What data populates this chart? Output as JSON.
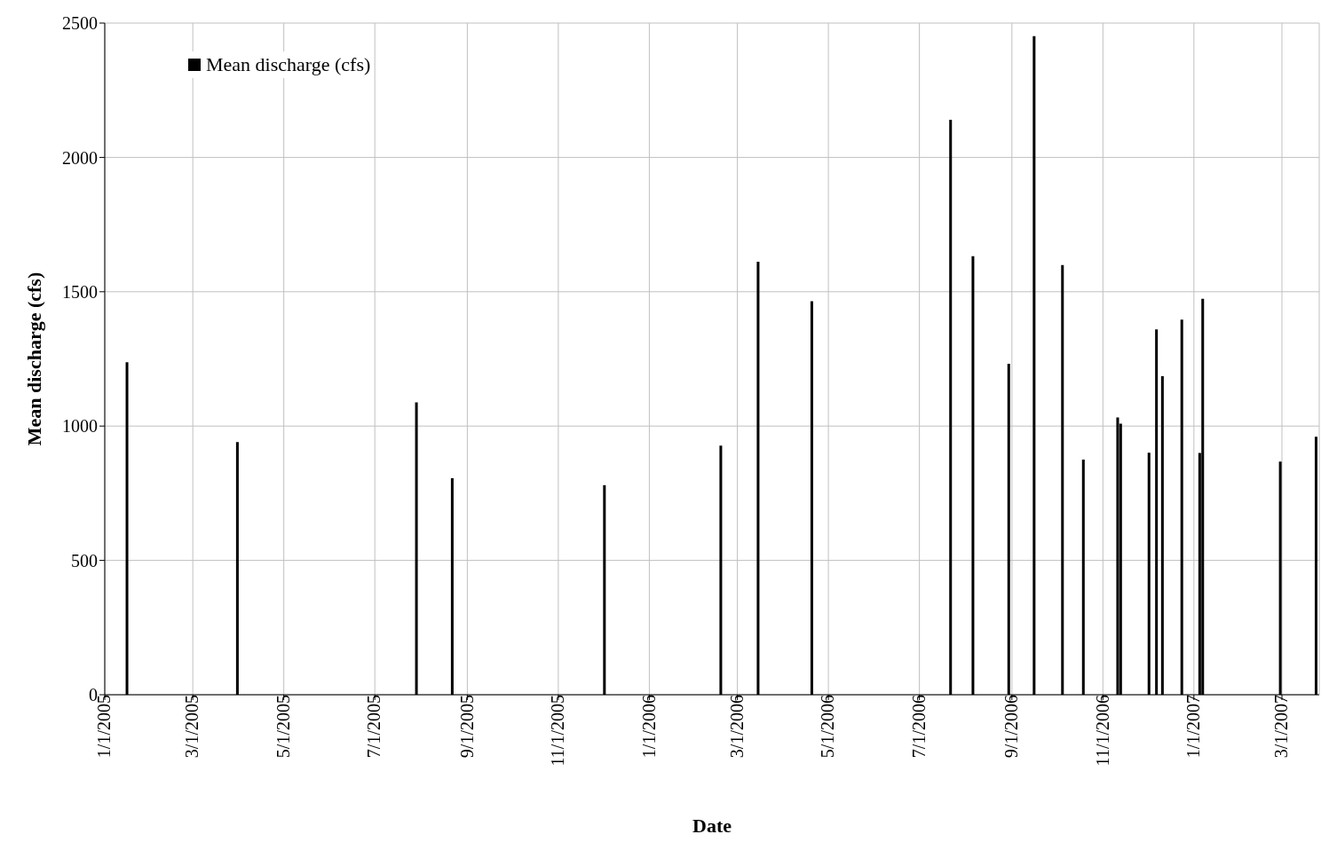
{
  "chart_data": {
    "type": "bar",
    "xlabel": "Date",
    "ylabel": "Mean discharge (cfs)",
    "x": [
      "2005-01-16",
      "2005-03-31",
      "2005-07-29",
      "2005-08-22",
      "2005-12-02",
      "2006-02-18",
      "2006-03-15",
      "2006-04-20",
      "2006-07-22",
      "2006-08-06",
      "2006-08-30",
      "2006-09-16",
      "2006-10-05",
      "2006-10-19",
      "2006-11-11",
      "2006-11-13",
      "2006-12-02",
      "2006-12-07",
      "2006-12-11",
      "2006-12-24",
      "2007-01-05",
      "2007-01-07",
      "2007-02-28",
      "2007-03-24"
    ],
    "series": [
      {
        "name": "Mean discharge (cfs)",
        "color": "#000000",
        "values": [
          1238,
          940,
          1088,
          806,
          780,
          927,
          1612,
          1465,
          2140,
          1632,
          1232,
          2451,
          1599,
          875,
          1032,
          1009,
          901,
          1360,
          1186,
          1396,
          900,
          1474,
          868,
          960
        ]
      }
    ],
    "xlim": [
      "2005-01-01",
      "2007-03-26"
    ],
    "xticks": [
      {
        "value": "2005-01-01",
        "label": "1/1/2005"
      },
      {
        "value": "2005-03-01",
        "label": "3/1/2005"
      },
      {
        "value": "2005-05-01",
        "label": "5/1/2005"
      },
      {
        "value": "2005-07-01",
        "label": "7/1/2005"
      },
      {
        "value": "2005-09-01",
        "label": "9/1/2005"
      },
      {
        "value": "2005-11-01",
        "label": "11/1/2005"
      },
      {
        "value": "2006-01-01",
        "label": "1/1/2006"
      },
      {
        "value": "2006-03-01",
        "label": "3/1/2006"
      },
      {
        "value": "2006-05-01",
        "label": "5/1/2006"
      },
      {
        "value": "2006-07-01",
        "label": "7/1/2006"
      },
      {
        "value": "2006-09-01",
        "label": "9/1/2006"
      },
      {
        "value": "2006-11-01",
        "label": "11/1/2006"
      },
      {
        "value": "2007-01-01",
        "label": "1/1/2007"
      },
      {
        "value": "2007-03-01",
        "label": "3/1/2007"
      }
    ],
    "ylim": [
      0,
      2500
    ],
    "yticks": [
      0,
      500,
      1000,
      1500,
      2000,
      2500
    ],
    "grid": true,
    "legend": "top left"
  }
}
